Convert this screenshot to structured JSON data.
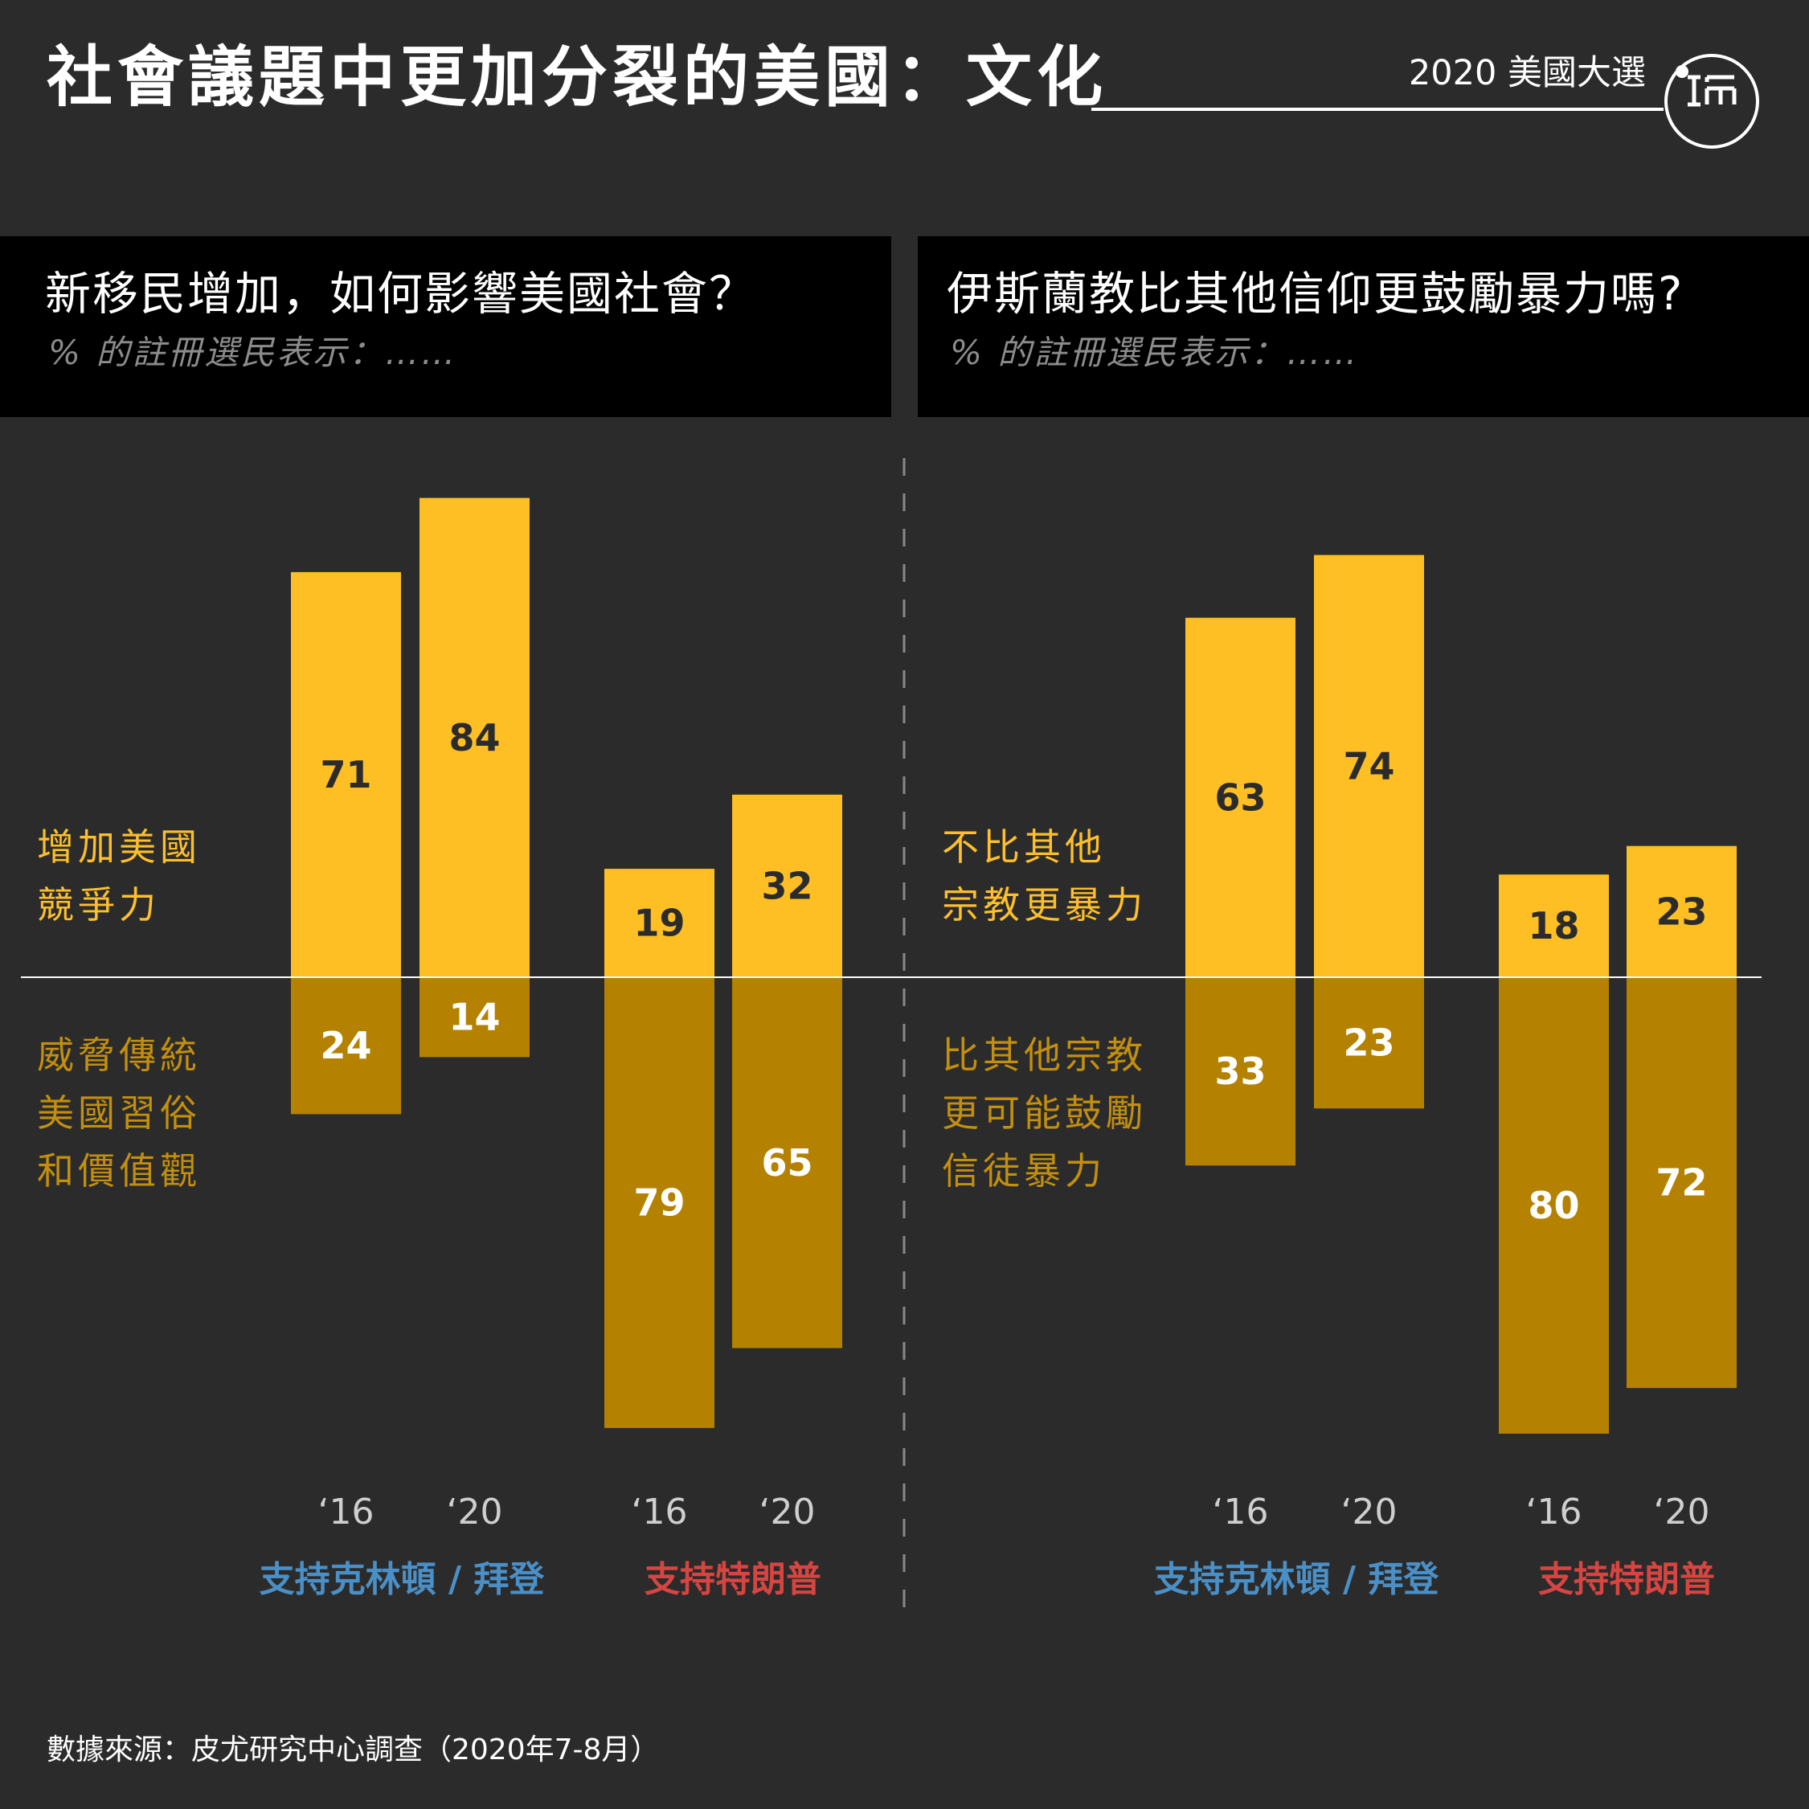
{
  "header": {
    "title": "社會議題中更加分裂的美國：文化",
    "series_label": "2020 美國大選"
  },
  "panels": [
    {
      "question": "新移民增加，如何影響美國社會？",
      "subtitle": "% 的註冊選民表示：……",
      "top_category": "增加美國\n競爭力",
      "bottom_category": "威脅傳統\n美國習俗\n和價值觀"
    },
    {
      "question": "伊斯蘭教比其他信仰更鼓勵暴力嗎?",
      "subtitle": "% 的註冊選民表示：……",
      "top_category": "不比其他\n宗教更暴力",
      "bottom_category": "比其他宗教\n更可能鼓勵\n信徒暴力"
    }
  ],
  "footer": {
    "source": "數據來源：皮尤研究中心調查（2020年7-8月）"
  },
  "colors": {
    "background": "#2b2b2b",
    "positive_bar": "#fdbf24",
    "negative_bar": "#b48200",
    "biden_group": "#4a8fc6",
    "trump_group": "#d64541"
  },
  "chart_data": [
    {
      "type": "bar",
      "stacking": "diverging",
      "title": "新移民增加，如何影響美國社會？",
      "categories": [
        "‘16",
        "‘20",
        "‘16",
        "‘20"
      ],
      "groups": [
        {
          "label": "支持克林頓 / 拜登",
          "color": "#4a8fc6",
          "categories": [
            "‘16",
            "‘20"
          ]
        },
        {
          "label": "支持特朗普",
          "color": "#d64541",
          "categories": [
            "‘16",
            "‘20"
          ]
        }
      ],
      "series": [
        {
          "name": "增加美國競爭力",
          "values": [
            71,
            84,
            19,
            32
          ]
        },
        {
          "name": "威脅傳統美國習俗和價值觀",
          "values": [
            24,
            14,
            79,
            65
          ]
        }
      ]
    },
    {
      "type": "bar",
      "stacking": "diverging",
      "title": "伊斯蘭教比其他信仰更鼓勵暴力嗎?",
      "categories": [
        "‘16",
        "‘20",
        "‘16",
        "‘20"
      ],
      "groups": [
        {
          "label": "支持克林頓 / 拜登",
          "color": "#4a8fc6",
          "categories": [
            "‘16",
            "‘20"
          ]
        },
        {
          "label": "支持特朗普",
          "color": "#d64541",
          "categories": [
            "‘16",
            "‘20"
          ]
        }
      ],
      "series": [
        {
          "name": "不比其他宗教更暴力",
          "values": [
            63,
            74,
            18,
            23
          ]
        },
        {
          "name": "比其他宗教更可能鼓勵信徒暴力",
          "values": [
            33,
            23,
            80,
            72
          ]
        }
      ]
    }
  ]
}
